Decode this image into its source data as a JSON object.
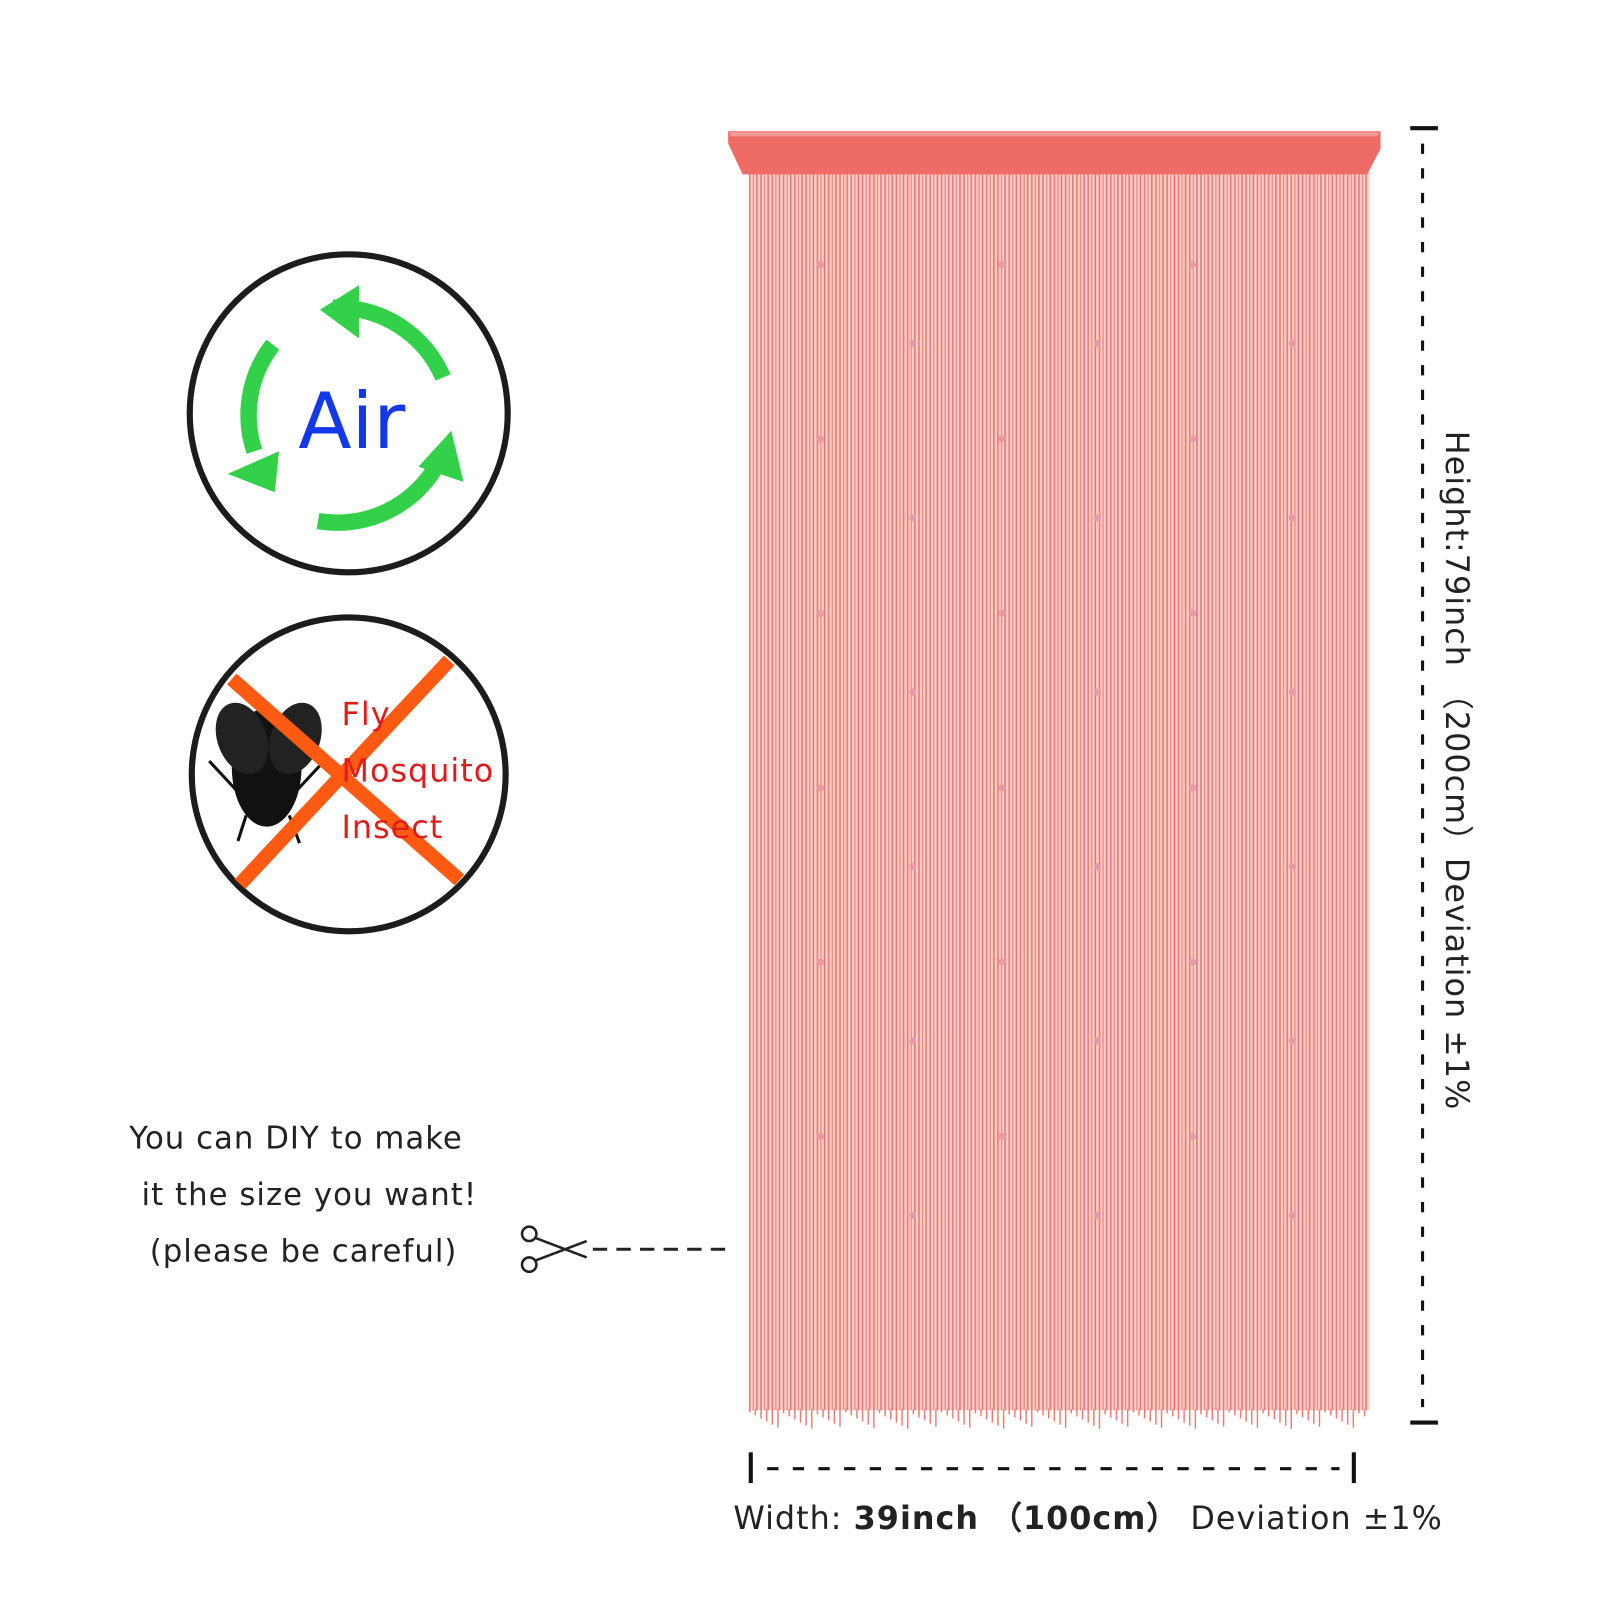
{
  "air_badge": {
    "label": "Air"
  },
  "pest_badge": {
    "items": [
      "Fly",
      "Mosquito",
      "Insect"
    ]
  },
  "diy_note": {
    "lines": [
      "You can DIY to make",
      "it the size you want!",
      "(please be careful)"
    ]
  },
  "dimensions": {
    "height": "Height:79inch （200cm）Deviation ±1%",
    "width": {
      "label": "Width:",
      "size": "39inch",
      "metric": "（100cm）",
      "deviation": "Deviation ±1%"
    }
  }
}
